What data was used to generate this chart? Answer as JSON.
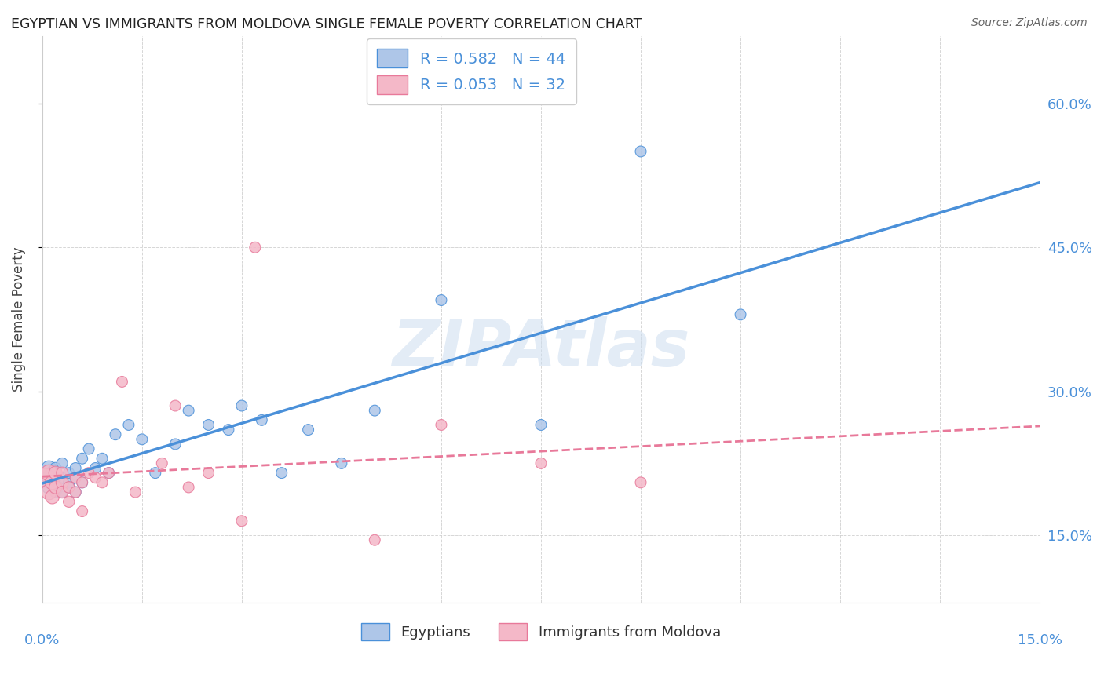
{
  "title": "EGYPTIAN VS IMMIGRANTS FROM MOLDOVA SINGLE FEMALE POVERTY CORRELATION CHART",
  "source": "Source: ZipAtlas.com",
  "ylabel": "Single Female Poverty",
  "ylim": [
    0.08,
    0.67
  ],
  "xlim": [
    0.0,
    0.15
  ],
  "yticks": [
    0.15,
    0.3,
    0.45,
    0.6
  ],
  "ytick_labels": [
    "15.0%",
    "30.0%",
    "45.0%",
    "60.0%"
  ],
  "blue_color": "#4a90d9",
  "pink_color": "#e8799a",
  "blue_fill": "#aec6e8",
  "pink_fill": "#f4b8c8",
  "watermark": "ZIPAtlas",
  "legend_top_labels": [
    "R = 0.582   N = 44",
    "R = 0.053   N = 32"
  ],
  "legend_bottom_labels": [
    "Egyptians",
    "Immigrants from Moldova"
  ],
  "egyptians_x": [
    0.0005,
    0.001,
    0.001,
    0.001,
    0.0015,
    0.0015,
    0.002,
    0.002,
    0.002,
    0.002,
    0.0025,
    0.003,
    0.003,
    0.003,
    0.004,
    0.004,
    0.004,
    0.005,
    0.005,
    0.005,
    0.006,
    0.006,
    0.007,
    0.008,
    0.009,
    0.01,
    0.011,
    0.013,
    0.015,
    0.017,
    0.02,
    0.022,
    0.025,
    0.028,
    0.03,
    0.033,
    0.036,
    0.04,
    0.045,
    0.05,
    0.06,
    0.075,
    0.09,
    0.105
  ],
  "egyptians_y": [
    0.215,
    0.22,
    0.21,
    0.2,
    0.215,
    0.205,
    0.21,
    0.22,
    0.195,
    0.215,
    0.2,
    0.21,
    0.225,
    0.195,
    0.205,
    0.215,
    0.2,
    0.195,
    0.22,
    0.21,
    0.23,
    0.205,
    0.24,
    0.22,
    0.23,
    0.215,
    0.255,
    0.265,
    0.25,
    0.215,
    0.245,
    0.28,
    0.265,
    0.26,
    0.285,
    0.27,
    0.215,
    0.26,
    0.225,
    0.28,
    0.395,
    0.265,
    0.55,
    0.38
  ],
  "moldova_x": [
    0.0005,
    0.001,
    0.001,
    0.0015,
    0.0015,
    0.002,
    0.002,
    0.003,
    0.003,
    0.003,
    0.004,
    0.004,
    0.005,
    0.005,
    0.006,
    0.006,
    0.007,
    0.008,
    0.009,
    0.01,
    0.012,
    0.014,
    0.018,
    0.02,
    0.022,
    0.025,
    0.03,
    0.032,
    0.05,
    0.06,
    0.075,
    0.09
  ],
  "moldova_y": [
    0.21,
    0.215,
    0.195,
    0.205,
    0.19,
    0.215,
    0.2,
    0.205,
    0.195,
    0.215,
    0.2,
    0.185,
    0.21,
    0.195,
    0.205,
    0.175,
    0.215,
    0.21,
    0.205,
    0.215,
    0.31,
    0.195,
    0.225,
    0.285,
    0.2,
    0.215,
    0.165,
    0.45,
    0.145,
    0.265,
    0.225,
    0.205
  ],
  "blue_sizes": [
    220,
    180,
    160,
    150,
    140,
    130,
    120,
    110,
    110,
    110,
    100,
    100,
    100,
    100,
    100,
    100,
    100,
    100,
    100,
    100,
    100,
    100,
    100,
    100,
    100,
    100,
    100,
    100,
    100,
    100,
    100,
    100,
    100,
    100,
    100,
    100,
    100,
    100,
    100,
    100,
    100,
    100,
    100,
    100
  ],
  "pink_sizes": [
    280,
    220,
    200,
    170,
    160,
    150,
    140,
    130,
    120,
    115,
    110,
    105,
    100,
    100,
    100,
    100,
    100,
    100,
    100,
    100,
    100,
    100,
    100,
    100,
    100,
    100,
    100,
    100,
    100,
    100,
    100,
    100
  ]
}
